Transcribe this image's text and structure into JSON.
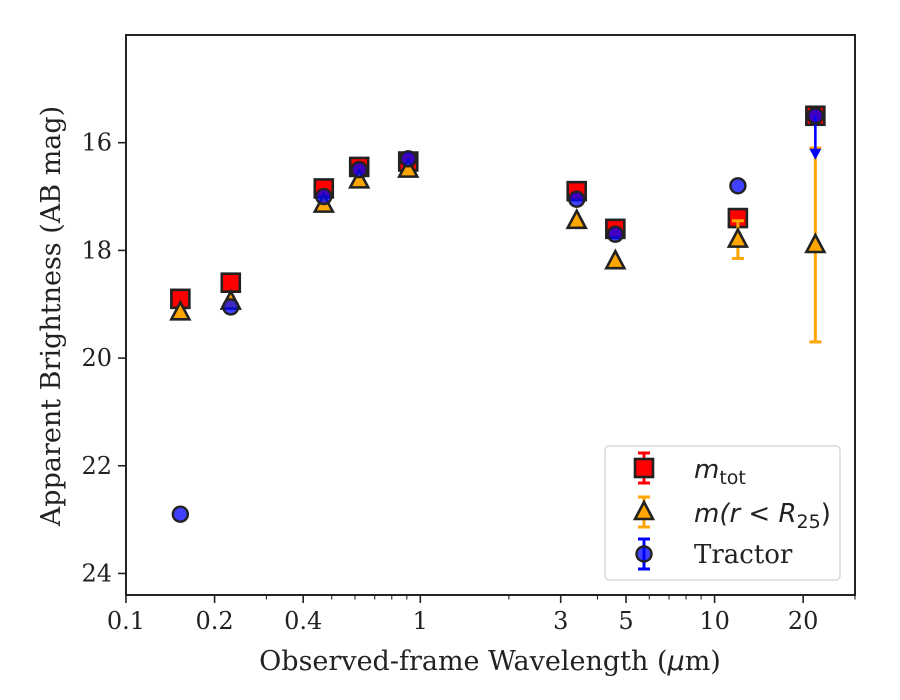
{
  "chart_data": {
    "type": "scatter",
    "xlabel_pre": "Observed-frame Wavelength (",
    "xlabel_mu": "μ",
    "xlabel_post": "m)",
    "ylabel": "Apparent Brightness (AB mag)",
    "xscale": "log",
    "xlim": [
      0.1,
      30
    ],
    "ylim": [
      24.4,
      14.0
    ],
    "y_inverted": true,
    "x_ticks": [
      0.1,
      0.2,
      0.4,
      1,
      3,
      5,
      10,
      20
    ],
    "x_tick_labels": [
      "0.1",
      "0.2",
      "0.4",
      "1",
      "3",
      "5",
      "10",
      "20"
    ],
    "y_ticks": [
      16,
      18,
      20,
      22,
      24
    ],
    "y_tick_labels": [
      "16",
      "18",
      "20",
      "22",
      "24"
    ],
    "legend_placement": "lower-right",
    "series": [
      {
        "key": "mtot",
        "legend_main": "m",
        "legend_sub": "tot",
        "legend_rest": "",
        "marker": "square",
        "color": "#ff0000",
        "edge_color": "#222222",
        "err_color": "#ff0000",
        "points": [
          {
            "x": 0.153,
            "y": 18.9
          },
          {
            "x": 0.227,
            "y": 18.6
          },
          {
            "x": 0.47,
            "y": 16.85
          },
          {
            "x": 0.62,
            "y": 16.45
          },
          {
            "x": 0.91,
            "y": 16.35
          },
          {
            "x": 3.4,
            "y": 16.9
          },
          {
            "x": 4.6,
            "y": 17.6
          },
          {
            "x": 12.0,
            "y": 17.4
          },
          {
            "x": 22.0,
            "y": 15.5
          }
        ]
      },
      {
        "key": "mr25",
        "legend_main": "m",
        "legend_sub": "25",
        "legend_rest": "(r < R",
        "marker": "triangle",
        "color": "#ffa500",
        "edge_color": "#222222",
        "err_color": "#ffa500",
        "points": [
          {
            "x": 0.153,
            "y": 19.15
          },
          {
            "x": 0.227,
            "y": 18.95
          },
          {
            "x": 0.47,
            "y": 17.15
          },
          {
            "x": 0.62,
            "y": 16.7
          },
          {
            "x": 0.91,
            "y": 16.5
          },
          {
            "x": 3.4,
            "y": 17.45
          },
          {
            "x": 4.6,
            "y": 18.2
          },
          {
            "x": 12.0,
            "y": 17.8,
            "err": 0.35
          },
          {
            "x": 22.0,
            "y": 17.9,
            "err_low": 1.8,
            "err_high": 1.8
          }
        ]
      },
      {
        "key": "tractor",
        "legend_main": "Tractor",
        "marker": "circle",
        "color": "#0000ff",
        "edge_color": "#222222",
        "err_color": "#0000ff",
        "points": [
          {
            "x": 0.153,
            "y": 22.9
          },
          {
            "x": 0.227,
            "y": 19.05
          },
          {
            "x": 0.47,
            "y": 17.0
          },
          {
            "x": 0.62,
            "y": 16.5
          },
          {
            "x": 0.91,
            "y": 16.3
          },
          {
            "x": 3.4,
            "y": 17.05
          },
          {
            "x": 4.6,
            "y": 17.7
          },
          {
            "x": 12.0,
            "y": 16.8
          },
          {
            "x": 22.0,
            "y": 15.5,
            "upper_limit": true
          }
        ]
      }
    ]
  }
}
